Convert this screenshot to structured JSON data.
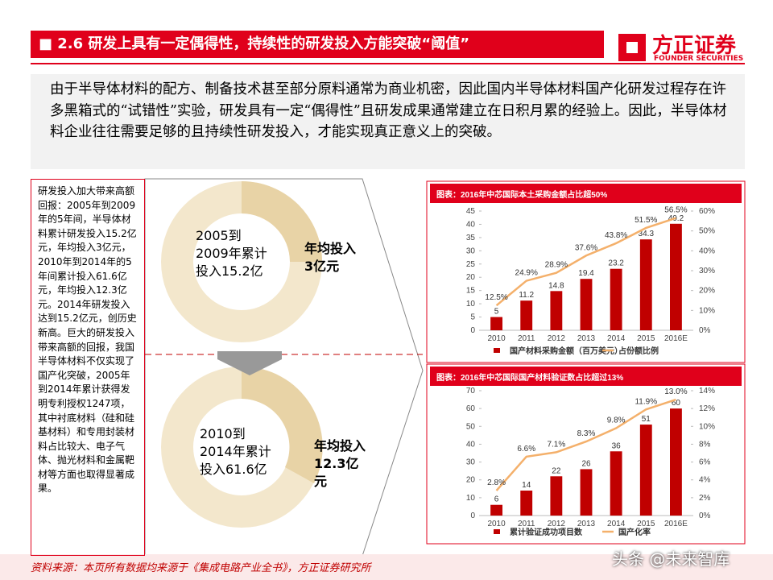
{
  "header": {
    "title": "■ 2.6 研发上具有一定偶得性，持续性的研发投入方能突破“阈值”",
    "logo": "方正证券",
    "logo_en": "FOUNDER SECURITIES"
  },
  "intro": "由于半导体材料的配方、制备技术甚至部分原料通常为商业机密，因此国内半导体材料国产化研发过程存在许多黑箱式的“试错性”实验，研发具有一定“偶得性”且研发成果通常建立在日积月累的经验上。因此，半导体材料企业往往需要足够的且持续性研发投入，才能实现真正意义上的突破。",
  "sidebar": "研发投入加大带来高额回报：2005年到2009年的5年间，半导体材料累计研发投入15.2亿元，年均投入3亿元，2010年到2014年的5年间累计投入61.6亿元，年均投入12.3亿元。2014年研发投入达到15.2亿元，创历史新高。巨大的研发投入带来高额的回报，我国半导体材料不仅实现了国产化突破，2005年到2014年累计获得发明专利授权1247项，其中衬底材料（硅和硅基材料）和专用封装材料占比较大、电子气体、抛光材料和金属靶材等方面也取得显著成果。",
  "figure": {
    "period1": "2005到2009年累计投入15.2亿",
    "annual1": "年均投入3亿元",
    "period2": "2010到2014年累计投入61.6亿",
    "annual2": "年均投入12.3亿元"
  },
  "chart_data": [
    {
      "type": "combo",
      "title": "图表：2016年中芯国际本土采购金额占比超50%",
      "categories": [
        "2010",
        "2011",
        "2012",
        "2013",
        "2014",
        "2015",
        "2016E"
      ],
      "series": [
        {
          "name": "国产材料采购金额（百万美元）",
          "type": "bar",
          "color": "#c00000",
          "values": [
            5,
            11.2,
            14.8,
            19.4,
            23.2,
            34.3,
            40.2
          ]
        },
        {
          "name": "占份额比例",
          "type": "line",
          "axis": "y2",
          "color": "#f4b06b",
          "values": [
            12.5,
            24.9,
            28.9,
            37.6,
            43.8,
            51.5,
            56.5
          ],
          "value_labels": [
            "12.5%",
            "24.9%",
            "28.9%",
            "37.6%",
            "43.8%",
            "51.5%",
            "56.5%"
          ]
        }
      ],
      "ylim": [
        0,
        45
      ],
      "yticks": [
        0,
        5,
        10,
        15,
        20,
        25,
        30,
        35,
        40,
        45
      ],
      "y2lim": [
        0,
        60
      ],
      "y2ticks": [
        {
          "value": 0,
          "label": "0%"
        },
        {
          "value": 10,
          "label": "10%"
        },
        {
          "value": 20,
          "label": "20%"
        },
        {
          "value": 30,
          "label": "30%"
        },
        {
          "value": 40,
          "label": "40%"
        },
        {
          "value": 50,
          "label": "50%"
        },
        {
          "value": 60,
          "label": "60%"
        }
      ]
    },
    {
      "type": "combo",
      "title": "图表：2016年中芯国际国产材料验证数占比超过13%",
      "categories": [
        "2010",
        "2011",
        "2012",
        "2013",
        "2014",
        "2015",
        "2016E"
      ],
      "series": [
        {
          "name": "累计验证成功项目数",
          "type": "bar",
          "color": "#c00000",
          "values": [
            6,
            14,
            22,
            26,
            36,
            51,
            60
          ]
        },
        {
          "name": "国产化率",
          "type": "line",
          "axis": "y2",
          "color": "#f4b06b",
          "values": [
            2.8,
            6.6,
            7.1,
            8.3,
            9.8,
            11.9,
            13.0
          ],
          "value_labels": [
            "2.8%",
            "6.6%",
            "7.1%",
            "8.3%",
            "9.8%",
            "11.9%",
            "13.0%"
          ]
        }
      ],
      "ylim": [
        0,
        70
      ],
      "yticks": [
        0,
        10,
        20,
        30,
        40,
        50,
        60,
        70
      ],
      "y2lim": [
        0,
        14
      ],
      "y2ticks": [
        {
          "value": 0,
          "label": "0%"
        },
        {
          "value": 2,
          "label": "2%"
        },
        {
          "value": 4,
          "label": "4%"
        },
        {
          "value": 6,
          "label": "6%"
        },
        {
          "value": 8,
          "label": "8%"
        },
        {
          "value": 10,
          "label": "10%"
        },
        {
          "value": 12,
          "label": "12%"
        },
        {
          "value": 14,
          "label": "14%"
        }
      ]
    }
  ],
  "footer": {
    "source": "资料来源：本页所有数据均来源于《集成电路产业全书》，方正证券研究所",
    "watermark": "头条 @未来智库"
  }
}
